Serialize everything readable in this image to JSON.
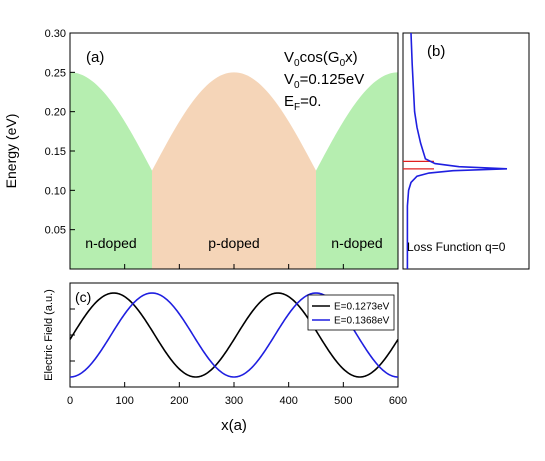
{
  "chart_data": [
    {
      "id": "a",
      "type": "area",
      "panel_label": "(a)",
      "ylabel": "Energy (eV)",
      "xlim": [
        0,
        600
      ],
      "ylim": [
        0,
        0.3
      ],
      "yticks": [
        0.05,
        0.1,
        0.15,
        0.2,
        0.25,
        0.3
      ],
      "ytick_labels": [
        "0.05",
        "0.10",
        "0.15",
        "0.20",
        "0.25",
        "0.30"
      ],
      "xticks": [
        0,
        100,
        200,
        300,
        400,
        500,
        600
      ],
      "annotation_lines": [
        {
          "base": "V",
          "sub": "0",
          "rest": "cos(G",
          "sub2": "0",
          "rest2": "x)"
        },
        {
          "base": "V",
          "sub": "0",
          "rest": "=0.125eV",
          "sub2": "",
          "rest2": ""
        },
        {
          "base": "E",
          "sub": "F",
          "rest": "=0.",
          "sub2": "",
          "rest2": ""
        }
      ],
      "potential": {
        "V0": 0.125,
        "period": 600,
        "max_energy": 0.25
      },
      "regions": [
        {
          "label": "n-doped",
          "x_range": [
            0,
            150
          ],
          "color": "#b6eeb0"
        },
        {
          "label": "p-doped",
          "x_range": [
            150,
            450
          ],
          "color": "#f5d5b8"
        },
        {
          "label": "n-doped",
          "x_range": [
            450,
            600
          ],
          "color": "#b6eeb0"
        }
      ]
    },
    {
      "id": "b",
      "type": "line",
      "panel_label": "(b)",
      "ylim": [
        0,
        0.3
      ],
      "label": "Loss Function q=0",
      "series": [
        {
          "color": "#1f1fe0",
          "x": [
            0.02,
            0.02,
            0.03,
            0.05,
            0.1,
            0.2,
            0.4,
            0.85,
            0.45,
            0.25,
            0.17,
            0.13,
            0.1,
            0.08,
            0.07,
            0.06,
            0.05
          ],
          "y": [
            0.0,
            0.08,
            0.1,
            0.11,
            0.118,
            0.122,
            0.125,
            0.1273,
            0.13,
            0.134,
            0.14,
            0.16,
            0.18,
            0.2,
            0.23,
            0.26,
            0.3
          ]
        }
      ],
      "markers": [
        {
          "y": 0.1273,
          "color": "#e02020"
        },
        {
          "y": 0.1368,
          "color": "#e02020"
        }
      ]
    },
    {
      "id": "c",
      "type": "line",
      "panel_label": "(c)",
      "ylabel": "Electric Field (a.u.)",
      "xlabel": "x(a)",
      "xlim": [
        0,
        600
      ],
      "xticks": [
        0,
        100,
        200,
        300,
        400,
        500,
        600
      ],
      "xtick_labels": [
        "0",
        "100",
        "200",
        "300",
        "400",
        "500",
        "600"
      ],
      "legend_position": "top-right",
      "series": [
        {
          "name": "E=0.1273eV",
          "color": "#000000",
          "peak_x": 80,
          "period": 300
        },
        {
          "name": "E=0.1368eV",
          "color": "#1f1fe0",
          "peak_x": 150,
          "period": 300
        }
      ]
    }
  ]
}
